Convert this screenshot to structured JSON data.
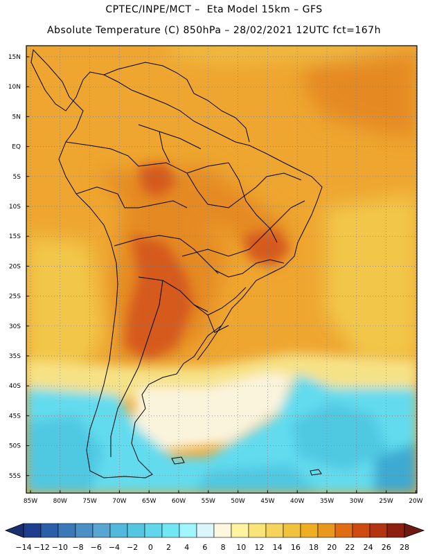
{
  "header": {
    "line1": "CPTEC/INPE/MCT –  Eta Model 15km – GFS",
    "line2": "Absolute Temperature (C) 850hPa – 28/02/2021 12UTC fct=167h"
  },
  "map": {
    "lat_ticks": [
      "15N",
      "10N",
      "5N",
      "EQ",
      "5S",
      "10S",
      "15S",
      "20S",
      "25S",
      "30S",
      "35S",
      "40S",
      "45S",
      "50S",
      "55S"
    ],
    "lon_ticks": [
      "85W",
      "80W",
      "75W",
      "70W",
      "65W",
      "60W",
      "55W",
      "50W",
      "45W",
      "40W",
      "35W",
      "30W",
      "25W",
      "20W"
    ],
    "field": "temperature-850hPa",
    "colors": {
      "warm_core": "#d65a1a",
      "warm": "#e58a22",
      "mid": "#eea630",
      "mild": "#f2c74a",
      "pale": "#f6e286",
      "cream": "#fbf4dd",
      "cyan": "#62dbee",
      "cold": "#4fc8e2",
      "colder": "#3daad2",
      "coast": "#000000"
    }
  },
  "colorbar": {
    "labels": [
      "-14",
      "-12",
      "-10",
      "-8",
      "-6",
      "-4",
      "-2",
      "0",
      "2",
      "4",
      "6",
      "8",
      "10",
      "12",
      "14",
      "16",
      "18",
      "20",
      "22",
      "24",
      "26",
      "28"
    ],
    "colors": [
      "#1e3f8e",
      "#2a5ea8",
      "#3a78b8",
      "#4a8fc6",
      "#5aa6d2",
      "#52b8dc",
      "#55c6e2",
      "#62d6ea",
      "#6fe8f4",
      "#9ff7fd",
      "#d9f6fb",
      "#fdf7e0",
      "#fef39f",
      "#f9e47a",
      "#f6d35a",
      "#f0c23e",
      "#efad24",
      "#e8981d",
      "#e06c13",
      "#cd4b10",
      "#b23411",
      "#8c2112"
    ]
  }
}
